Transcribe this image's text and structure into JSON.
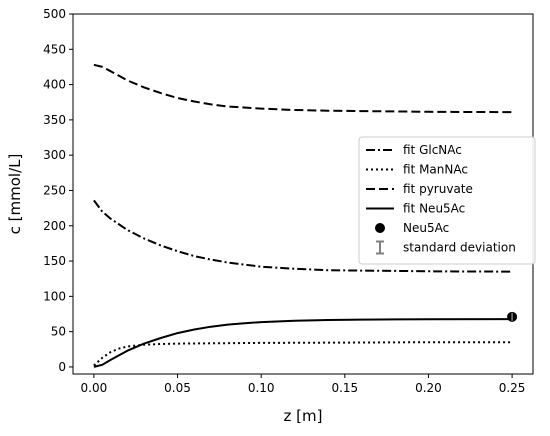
{
  "chart_data": {
    "type": "line",
    "xlabel": "z [m]",
    "ylabel": "c [mmol/L]",
    "xlim": [
      -0.0125,
      0.2625
    ],
    "ylim": [
      -10,
      500
    ],
    "xticks": [
      0.0,
      0.05,
      0.1,
      0.15,
      0.2,
      0.25
    ],
    "xtick_labels": [
      "0.00",
      "0.05",
      "0.10",
      "0.15",
      "0.20",
      "0.25"
    ],
    "yticks": [
      0,
      50,
      100,
      150,
      200,
      250,
      300,
      350,
      400,
      450,
      500
    ],
    "ytick_labels": [
      "0",
      "50",
      "100",
      "150",
      "200",
      "250",
      "300",
      "350",
      "400",
      "450",
      "500"
    ],
    "grid": false,
    "legend_position": "center-right",
    "series": [
      {
        "name": "fit GlcNAc",
        "style": "dashdot",
        "x": [
          0,
          0.005,
          0.01,
          0.02,
          0.03,
          0.04,
          0.05,
          0.06,
          0.07,
          0.08,
          0.1,
          0.12,
          0.14,
          0.16,
          0.18,
          0.2,
          0.22,
          0.25
        ],
        "y": [
          236,
          220,
          210,
          194,
          182,
          172,
          164,
          157,
          152,
          148,
          142,
          139,
          137,
          136.5,
          136,
          135.5,
          135.2,
          135
        ]
      },
      {
        "name": "fit ManNAc",
        "style": "dotted",
        "x": [
          0,
          0.005,
          0.01,
          0.015,
          0.02,
          0.03,
          0.04,
          0.05,
          0.07,
          0.1,
          0.15,
          0.2,
          0.25
        ],
        "y": [
          2,
          13,
          21,
          26,
          29,
          31.5,
          32.5,
          33,
          33.5,
          34,
          34.5,
          35,
          35
        ]
      },
      {
        "name": "fit pyruvate",
        "style": "dashed",
        "x": [
          0,
          0.005,
          0.01,
          0.02,
          0.03,
          0.04,
          0.05,
          0.06,
          0.07,
          0.08,
          0.1,
          0.12,
          0.14,
          0.16,
          0.18,
          0.2,
          0.22,
          0.25
        ],
        "y": [
          428,
          425,
          419,
          406,
          396,
          388,
          381,
          376,
          372,
          369,
          366,
          364,
          363,
          362.5,
          362,
          361.5,
          361.2,
          361
        ]
      },
      {
        "name": "fit Neu5Ac",
        "style": "solid",
        "x": [
          0,
          0.005,
          0.01,
          0.02,
          0.03,
          0.04,
          0.05,
          0.06,
          0.07,
          0.08,
          0.09,
          0.1,
          0.12,
          0.14,
          0.16,
          0.18,
          0.2,
          0.25
        ],
        "y": [
          0,
          3,
          10,
          23,
          33,
          41,
          48,
          53,
          57,
          60,
          62,
          63.5,
          65.5,
          66.5,
          67,
          67.3,
          67.5,
          67.8
        ]
      },
      {
        "name": "Neu5Ac",
        "style": "marker",
        "x": [
          0.25
        ],
        "y": [
          71
        ]
      }
    ],
    "legend": [
      {
        "label": "fit GlcNAc",
        "style": "dashdot"
      },
      {
        "label": "fit ManNAc",
        "style": "dotted"
      },
      {
        "label": "fit pyruvate",
        "style": "dashed"
      },
      {
        "label": "fit Neu5Ac",
        "style": "solid"
      },
      {
        "label": "Neu5Ac",
        "style": "marker"
      },
      {
        "label": "standard deviation",
        "style": "errorbar"
      }
    ],
    "colors": {
      "line": "#000000",
      "marker": "#000000",
      "errorbar": "#808080",
      "legend_border": "#cccccc"
    }
  }
}
